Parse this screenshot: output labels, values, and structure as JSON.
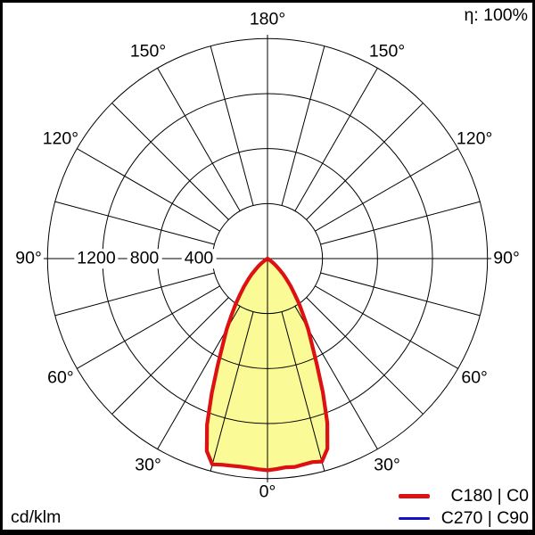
{
  "chart_data": {
    "type": "polar",
    "kind": "luminous-intensity-distribution",
    "unit": "cd/klm",
    "efficiency": "η: 100%",
    "grid": {
      "ring_values": [
        400,
        800,
        1200,
        1600
      ],
      "radial_tick_labels": [
        "400",
        "800",
        "1200"
      ],
      "r_max": 1600,
      "spoke_step_deg": 15
    },
    "angle_labels": [
      {
        "text": "180°",
        "gamma": 180,
        "side": 0
      },
      {
        "text": "150°",
        "gamma": 150,
        "side": -1
      },
      {
        "text": "150°",
        "gamma": 150,
        "side": 1
      },
      {
        "text": "120°",
        "gamma": 120,
        "side": -1
      },
      {
        "text": "120°",
        "gamma": 120,
        "side": 1
      },
      {
        "text": "90°",
        "gamma": 90,
        "side": -1
      },
      {
        "text": "90°",
        "gamma": 90,
        "side": 1
      },
      {
        "text": "60°",
        "gamma": 60,
        "side": -1
      },
      {
        "text": "60°",
        "gamma": 60,
        "side": 1
      },
      {
        "text": "30°",
        "gamma": 30,
        "side": -1
      },
      {
        "text": "30°",
        "gamma": 30,
        "side": 1
      },
      {
        "text": "0°",
        "gamma": 0,
        "side": 0
      }
    ],
    "gamma_deg": [
      0,
      2.5,
      5,
      7.5,
      10,
      12.5,
      15,
      17.5,
      20,
      22.5,
      25,
      27.5,
      30,
      32.5,
      35,
      37.5,
      40,
      42.5,
      45,
      47.5,
      50,
      52.5,
      55,
      57.5,
      60,
      62.5,
      65,
      70,
      75,
      80,
      85,
      90
    ],
    "series": [
      {
        "name": "C180 | C0",
        "color": "#dd1111",
        "stroke_width": 4.2,
        "fill": "#fafa96",
        "left": [
          1540,
          1534,
          1528,
          1526,
          1530,
          1536,
          1550,
          1468,
          1285,
          1060,
          858,
          702,
          594,
          486,
          404,
          326,
          266,
          210,
          166,
          120,
          86,
          56,
          30,
          14,
          5,
          0,
          0,
          0,
          0,
          0,
          0,
          0
        ],
        "right": [
          1540,
          1532,
          1524,
          1528,
          1520,
          1516,
          1528,
          1450,
          1272,
          1052,
          848,
          696,
          590,
          480,
          400,
          322,
          262,
          206,
          162,
          116,
          82,
          52,
          28,
          12,
          4,
          0,
          0,
          0,
          0,
          0,
          0,
          0
        ]
      },
      {
        "name": "C270 | C90",
        "color": "#1111cc",
        "stroke_width": 3,
        "fill": null,
        "left": [
          1540,
          1534,
          1528,
          1526,
          1530,
          1536,
          1550,
          1468,
          1285,
          1060,
          858,
          702,
          594,
          486,
          404,
          326,
          266,
          210,
          166,
          120,
          86,
          56,
          30,
          14,
          5,
          0,
          0,
          0,
          0,
          0,
          0,
          0
        ],
        "right": [
          1540,
          1532,
          1524,
          1528,
          1520,
          1516,
          1528,
          1450,
          1272,
          1052,
          848,
          696,
          590,
          480,
          400,
          322,
          262,
          206,
          162,
          116,
          82,
          52,
          28,
          12,
          4,
          0,
          0,
          0,
          0,
          0,
          0,
          0
        ]
      }
    ],
    "legend": [
      {
        "label": "C180 | C0",
        "color": "#dd1111",
        "thickness": 4.5
      },
      {
        "label": "C270 | C90",
        "color": "#1111cc",
        "thickness": 3.5
      }
    ]
  }
}
